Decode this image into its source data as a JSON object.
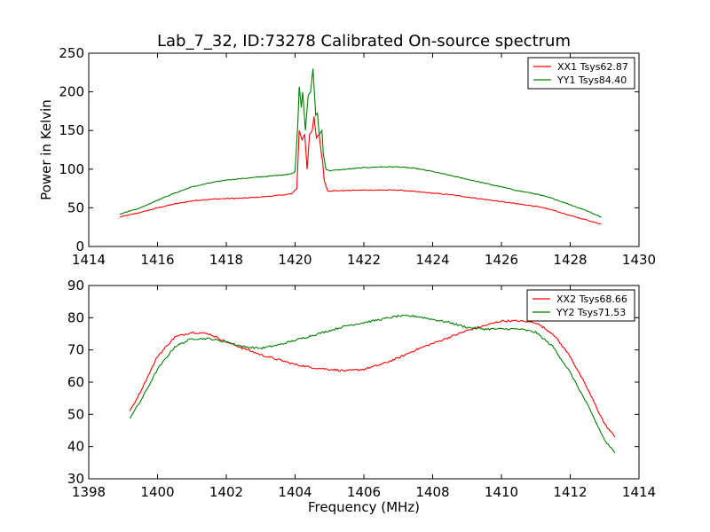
{
  "chart_data": [
    {
      "type": "line",
      "title": "Lab_7_32, ID:73278 Calibrated On-source spectrum",
      "xlabel": "",
      "ylabel": "Power in Kelvin",
      "xlim": [
        1414,
        1430
      ],
      "ylim": [
        0,
        250
      ],
      "xticks": [
        1414,
        1416,
        1418,
        1420,
        1422,
        1424,
        1426,
        1428,
        1430
      ],
      "yticks": [
        0,
        50,
        100,
        150,
        200,
        250
      ],
      "legend_position": "top-right",
      "series": [
        {
          "name": "XX1 Tsys62.87",
          "color": "#ff0000",
          "points": [
            [
              1414.9,
              38
            ],
            [
              1415.5,
              44
            ],
            [
              1416,
              50
            ],
            [
              1416.5,
              55
            ],
            [
              1417,
              59
            ],
            [
              1417.5,
              61
            ],
            [
              1418,
              62
            ],
            [
              1418.5,
              62.5
            ],
            [
              1419,
              64
            ],
            [
              1419.5,
              66
            ],
            [
              1419.9,
              68
            ],
            [
              1420.05,
              75
            ],
            [
              1420.12,
              150
            ],
            [
              1420.2,
              138
            ],
            [
              1420.28,
              145
            ],
            [
              1420.35,
              100
            ],
            [
              1420.42,
              145
            ],
            [
              1420.5,
              150
            ],
            [
              1420.55,
              168
            ],
            [
              1420.62,
              140
            ],
            [
              1420.7,
              145
            ],
            [
              1420.75,
              125
            ],
            [
              1420.8,
              110
            ],
            [
              1420.85,
              85
            ],
            [
              1420.95,
              72
            ],
            [
              1421.2,
              72
            ],
            [
              1422,
              73
            ],
            [
              1422.5,
              73
            ],
            [
              1423,
              73
            ],
            [
              1423.5,
              71
            ],
            [
              1424,
              69
            ],
            [
              1424.5,
              67
            ],
            [
              1425,
              64
            ],
            [
              1425.5,
              61
            ],
            [
              1426,
              58
            ],
            [
              1426.5,
              55
            ],
            [
              1427,
              52
            ],
            [
              1427.5,
              47
            ],
            [
              1428,
              40
            ],
            [
              1428.5,
              34
            ],
            [
              1428.9,
              29
            ]
          ]
        },
        {
          "name": "YY1 Tsys84.40",
          "color": "#008000",
          "points": [
            [
              1414.9,
              42
            ],
            [
              1415.5,
              50
            ],
            [
              1416,
              60
            ],
            [
              1416.5,
              69
            ],
            [
              1417,
              77
            ],
            [
              1417.5,
              82
            ],
            [
              1418,
              86
            ],
            [
              1418.5,
              88
            ],
            [
              1419,
              90
            ],
            [
              1419.5,
              92
            ],
            [
              1419.9,
              94
            ],
            [
              1420,
              97
            ],
            [
              1420.08,
              160
            ],
            [
              1420.12,
              207
            ],
            [
              1420.18,
              180
            ],
            [
              1420.22,
              200
            ],
            [
              1420.3,
              150
            ],
            [
              1420.38,
              195
            ],
            [
              1420.45,
              200
            ],
            [
              1420.52,
              230
            ],
            [
              1420.6,
              170
            ],
            [
              1420.65,
              172
            ],
            [
              1420.7,
              145
            ],
            [
              1420.78,
              150
            ],
            [
              1420.82,
              120
            ],
            [
              1420.9,
              100
            ],
            [
              1421,
              98
            ],
            [
              1421.5,
              100
            ],
            [
              1422,
              102
            ],
            [
              1422.5,
              103
            ],
            [
              1423,
              103
            ],
            [
              1423.5,
              101
            ],
            [
              1424,
              97
            ],
            [
              1424.5,
              92
            ],
            [
              1425,
              87
            ],
            [
              1425.5,
              82
            ],
            [
              1426,
              77
            ],
            [
              1426.5,
              72
            ],
            [
              1427,
              68
            ],
            [
              1427.5,
              62
            ],
            [
              1428,
              54
            ],
            [
              1428.5,
              46
            ],
            [
              1428.9,
              38
            ]
          ]
        }
      ]
    },
    {
      "type": "line",
      "title": "",
      "xlabel": "Frequency (MHz)",
      "ylabel": "",
      "xlim": [
        1398,
        1414
      ],
      "ylim": [
        30,
        90
      ],
      "xticks": [
        1398,
        1400,
        1402,
        1404,
        1406,
        1408,
        1410,
        1412,
        1414
      ],
      "yticks": [
        30,
        40,
        50,
        60,
        70,
        80,
        90
      ],
      "legend_position": "top-right",
      "series": [
        {
          "name": "XX2 Tsys68.66",
          "color": "#ff0000",
          "points": [
            [
              1399.2,
              51
            ],
            [
              1399.5,
              57
            ],
            [
              1400,
              68
            ],
            [
              1400.5,
              74
            ],
            [
              1401,
              75.5
            ],
            [
              1401.5,
              75
            ],
            [
              1402,
              72.5
            ],
            [
              1402.5,
              70.5
            ],
            [
              1403,
              68.5
            ],
            [
              1403.5,
              67
            ],
            [
              1404,
              65.5
            ],
            [
              1404.5,
              64.5
            ],
            [
              1405,
              64
            ],
            [
              1405.5,
              63.5
            ],
            [
              1406,
              64
            ],
            [
              1406.5,
              65.5
            ],
            [
              1407,
              67.5
            ],
            [
              1407.5,
              70
            ],
            [
              1408,
              72
            ],
            [
              1408.5,
              74
            ],
            [
              1409,
              76
            ],
            [
              1409.5,
              77.5
            ],
            [
              1410,
              79
            ],
            [
              1410.5,
              79
            ],
            [
              1411,
              78.5
            ],
            [
              1411.5,
              75
            ],
            [
              1412,
              68
            ],
            [
              1412.5,
              58
            ],
            [
              1413,
              47
            ],
            [
              1413.3,
              43
            ]
          ]
        },
        {
          "name": "YY2 Tsys71.53",
          "color": "#008000",
          "points": [
            [
              1399.2,
              49
            ],
            [
              1399.5,
              54
            ],
            [
              1400,
              64
            ],
            [
              1400.5,
              71
            ],
            [
              1401,
              73.5
            ],
            [
              1401.5,
              73.5
            ],
            [
              1402,
              72.5
            ],
            [
              1402.5,
              71
            ],
            [
              1403,
              70.5
            ],
            [
              1403.5,
              71.5
            ],
            [
              1404,
              73
            ],
            [
              1404.5,
              74.5
            ],
            [
              1405,
              76
            ],
            [
              1405.5,
              77.5
            ],
            [
              1406,
              78.5
            ],
            [
              1406.5,
              79.5
            ],
            [
              1407,
              80.5
            ],
            [
              1407.5,
              80.5
            ],
            [
              1408,
              79.5
            ],
            [
              1408.5,
              78.5
            ],
            [
              1409,
              77
            ],
            [
              1409.5,
              76.5
            ],
            [
              1410,
              76.5
            ],
            [
              1410.5,
              76.5
            ],
            [
              1411,
              75.5
            ],
            [
              1411.5,
              71
            ],
            [
              1412,
              63
            ],
            [
              1412.5,
              53
            ],
            [
              1413,
              42
            ],
            [
              1413.3,
              38
            ]
          ]
        }
      ]
    }
  ]
}
